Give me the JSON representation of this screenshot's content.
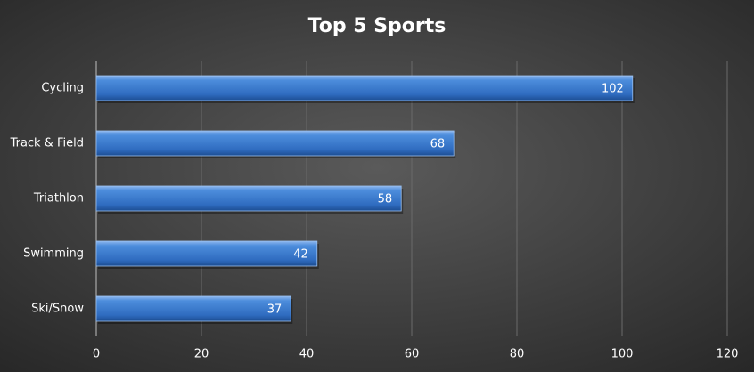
{
  "chart_data": {
    "type": "bar",
    "orientation": "horizontal",
    "title": "Top 5 Sports",
    "categories": [
      "Cycling",
      "Track & Field",
      "Triathlon",
      "Swimming",
      "Ski/Snow"
    ],
    "values": [
      102,
      68,
      58,
      42,
      37
    ],
    "color": "#3f7fd0",
    "xlim": [
      0,
      120
    ],
    "xticks": [
      0,
      20,
      40,
      60,
      80,
      100,
      120
    ],
    "grid": true
  }
}
